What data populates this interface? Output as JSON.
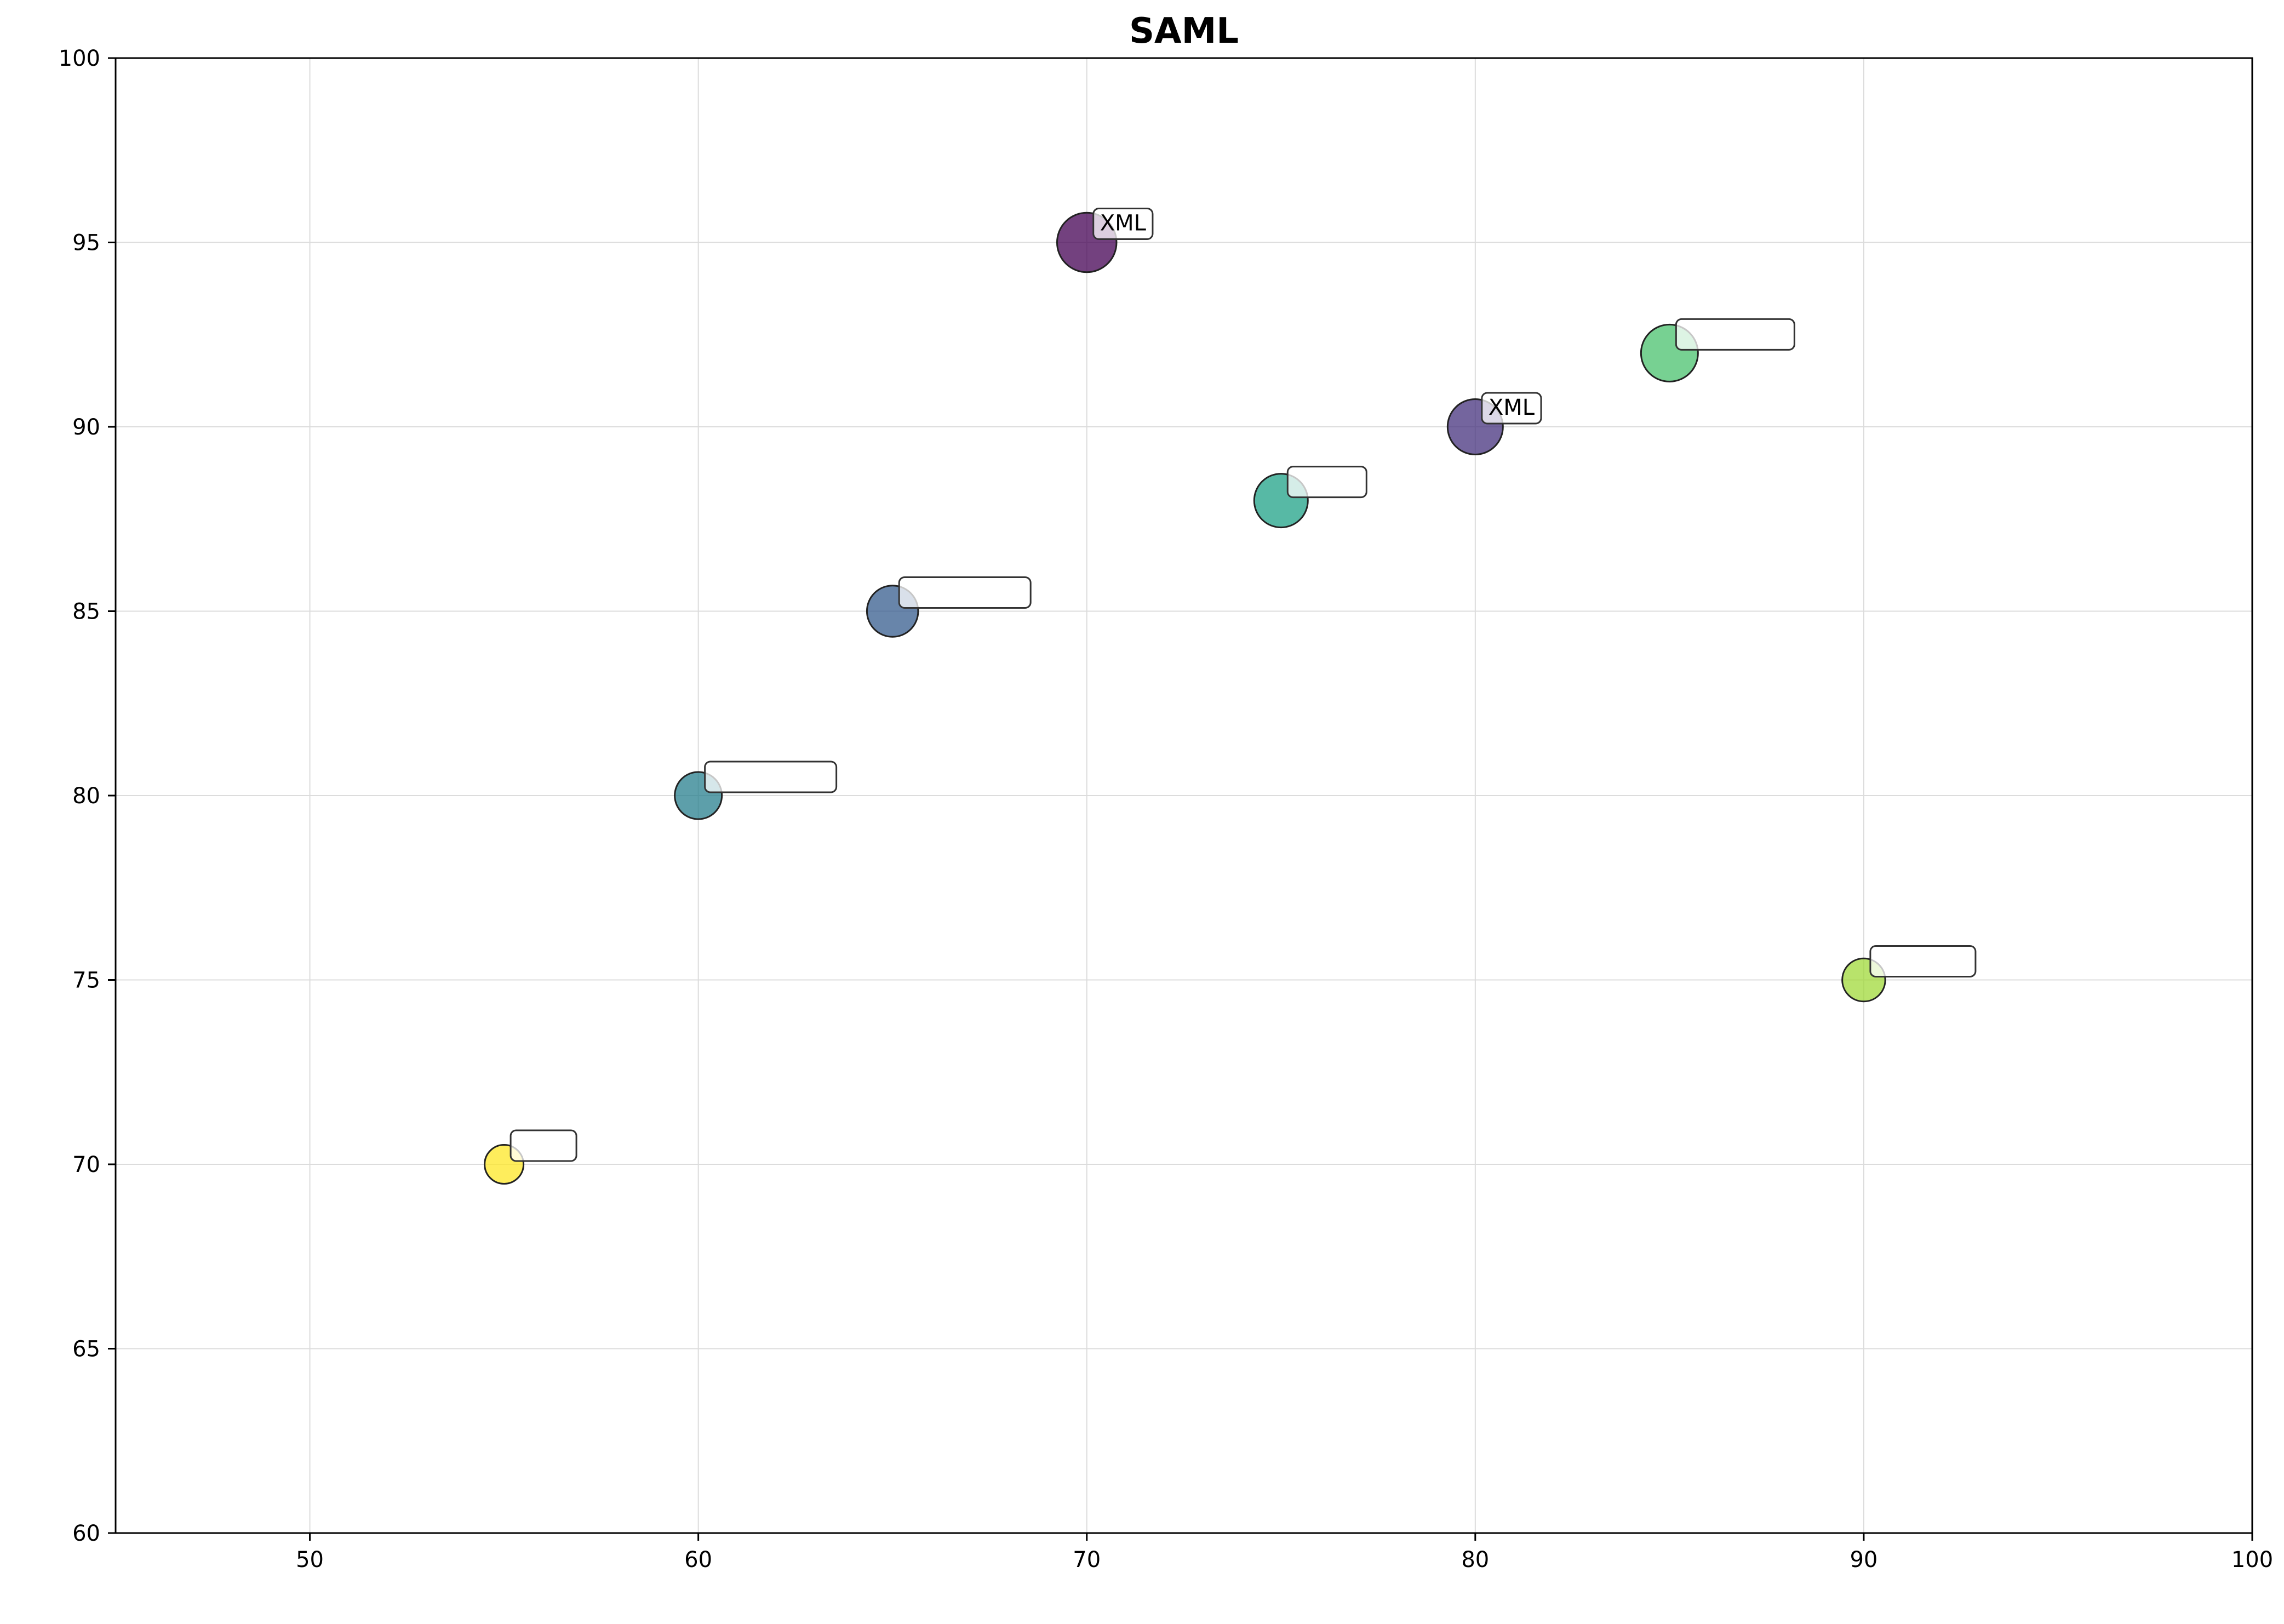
{
  "chart_data": {
    "type": "scatter",
    "title": "SAML​​​​​​​​​​​​​​​",
    "xlabel": "​​​​​",
    "ylabel": "​​​",
    "xlim": [
      45,
      100
    ],
    "ylim": [
      60,
      100
    ],
    "xticks": [
      50,
      60,
      70,
      80,
      90,
      100
    ],
    "yticks": [
      60,
      65,
      70,
      75,
      80,
      85,
      90,
      95,
      100
    ],
    "grid": true,
    "points": [
      {
        "label": "XML​​​​​​",
        "x": 70,
        "y": 95,
        "color": "#440154"
      },
      {
        "label": "XML​​​",
        "x": 80,
        "y": 90,
        "color": "#46327e"
      },
      {
        "label": "​​​​​​​​​",
        "x": 65,
        "y": 85,
        "color": "#365c8d"
      },
      {
        "label": "​​​​​​​​​",
        "x": 60,
        "y": 80,
        "color": "#277f8e"
      },
      {
        "label": "​​​​​",
        "x": 75,
        "y": 88,
        "color": "#1fa187"
      },
      {
        "label": "​​​​​​​​",
        "x": 85,
        "y": 92,
        "color": "#4ac16d"
      },
      {
        "label": "​​​​​​​",
        "x": 90,
        "y": 75,
        "color": "#a0da39"
      },
      {
        "label": "​​​​",
        "x": 55,
        "y": 70,
        "color": "#fde725"
      }
    ]
  }
}
